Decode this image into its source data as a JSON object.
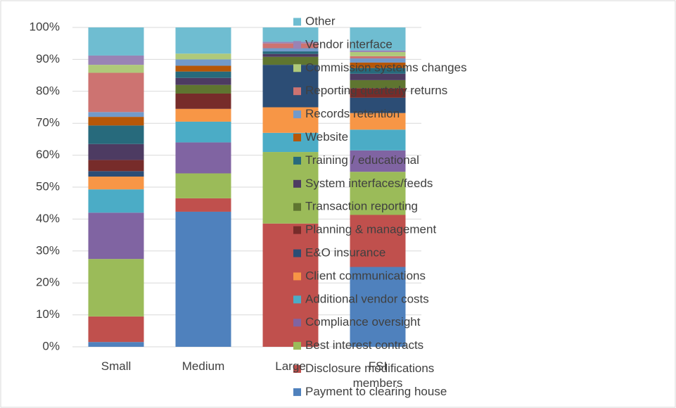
{
  "chart_data": {
    "type": "stacked_bar",
    "categories": [
      "Small",
      "Medium",
      "Large",
      "FSI members"
    ],
    "series": [
      {
        "name": "Payment to clearing house",
        "color": "#4f81bd",
        "values": [
          1.5,
          42.3,
          0,
          25
        ]
      },
      {
        "name": "Disclosure modifications",
        "color": "#c0504d",
        "values": [
          8,
          4.2,
          38.6,
          16.3
        ]
      },
      {
        "name": "Best interest contracts",
        "color": "#9bbb59",
        "values": [
          18,
          7.8,
          22.4,
          13.5
        ]
      },
      {
        "name": "Compliance oversight",
        "color": "#8064a2",
        "values": [
          14.5,
          9.7,
          0,
          6.7
        ]
      },
      {
        "name": "Additional vendor costs",
        "color": "#4bacc6",
        "values": [
          7.3,
          6.5,
          6,
          6.5
        ]
      },
      {
        "name": "Client communications",
        "color": "#f79646",
        "values": [
          4,
          4,
          8,
          5.2
        ]
      },
      {
        "name": "E&O insurance",
        "color": "#2c4d75",
        "values": [
          1.7,
          0,
          13.3,
          4.8
        ]
      },
      {
        "name": "Planning & management",
        "color": "#772c2a",
        "values": [
          3.5,
          4.8,
          0,
          3
        ]
      },
      {
        "name": "Transaction reporting",
        "color": "#5f7530",
        "values": [
          0,
          2.7,
          2.5,
          2.5
        ]
      },
      {
        "name": "System interfaces/feeds",
        "color": "#4d3b62",
        "values": [
          5,
          2.2,
          0.9,
          2
        ]
      },
      {
        "name": "Training / educational",
        "color": "#276a7c",
        "values": [
          5.8,
          2,
          0.8,
          1.8
        ]
      },
      {
        "name": "Website",
        "color": "#b65708",
        "values": [
          2.7,
          1.8,
          0,
          1.7
        ]
      },
      {
        "name": "Records retention",
        "color": "#729aca",
        "values": [
          1.5,
          2,
          1,
          1.3
        ]
      },
      {
        "name": "Reporting quarterly returns",
        "color": "#cd7371",
        "values": [
          12.3,
          0,
          1.5,
          0.7
        ]
      },
      {
        "name": "Commission systems changes",
        "color": "#afc97a",
        "values": [
          2.5,
          1.8,
          0,
          1.3
        ]
      },
      {
        "name": "Vendor interface",
        "color": "#9983b5",
        "values": [
          2.9,
          0,
          0.5,
          0.5
        ]
      },
      {
        "name": "Other",
        "color": "#6fbdd1",
        "values": [
          8.8,
          8.2,
          4.5,
          7.2
        ]
      }
    ],
    "ylim": [
      0,
      100
    ],
    "yticks": [
      {
        "value": 0,
        "label": "0%"
      },
      {
        "value": 10,
        "label": "10%"
      },
      {
        "value": 20,
        "label": "20%"
      },
      {
        "value": 30,
        "label": "30%"
      },
      {
        "value": 40,
        "label": "40%"
      },
      {
        "value": 50,
        "label": "50%"
      },
      {
        "value": 60,
        "label": "60%"
      },
      {
        "value": 70,
        "label": "70%"
      },
      {
        "value": 80,
        "label": "80%"
      },
      {
        "value": 90,
        "label": "90%"
      },
      {
        "value": 100,
        "label": "100%"
      }
    ],
    "grid": true,
    "legend": "right"
  }
}
